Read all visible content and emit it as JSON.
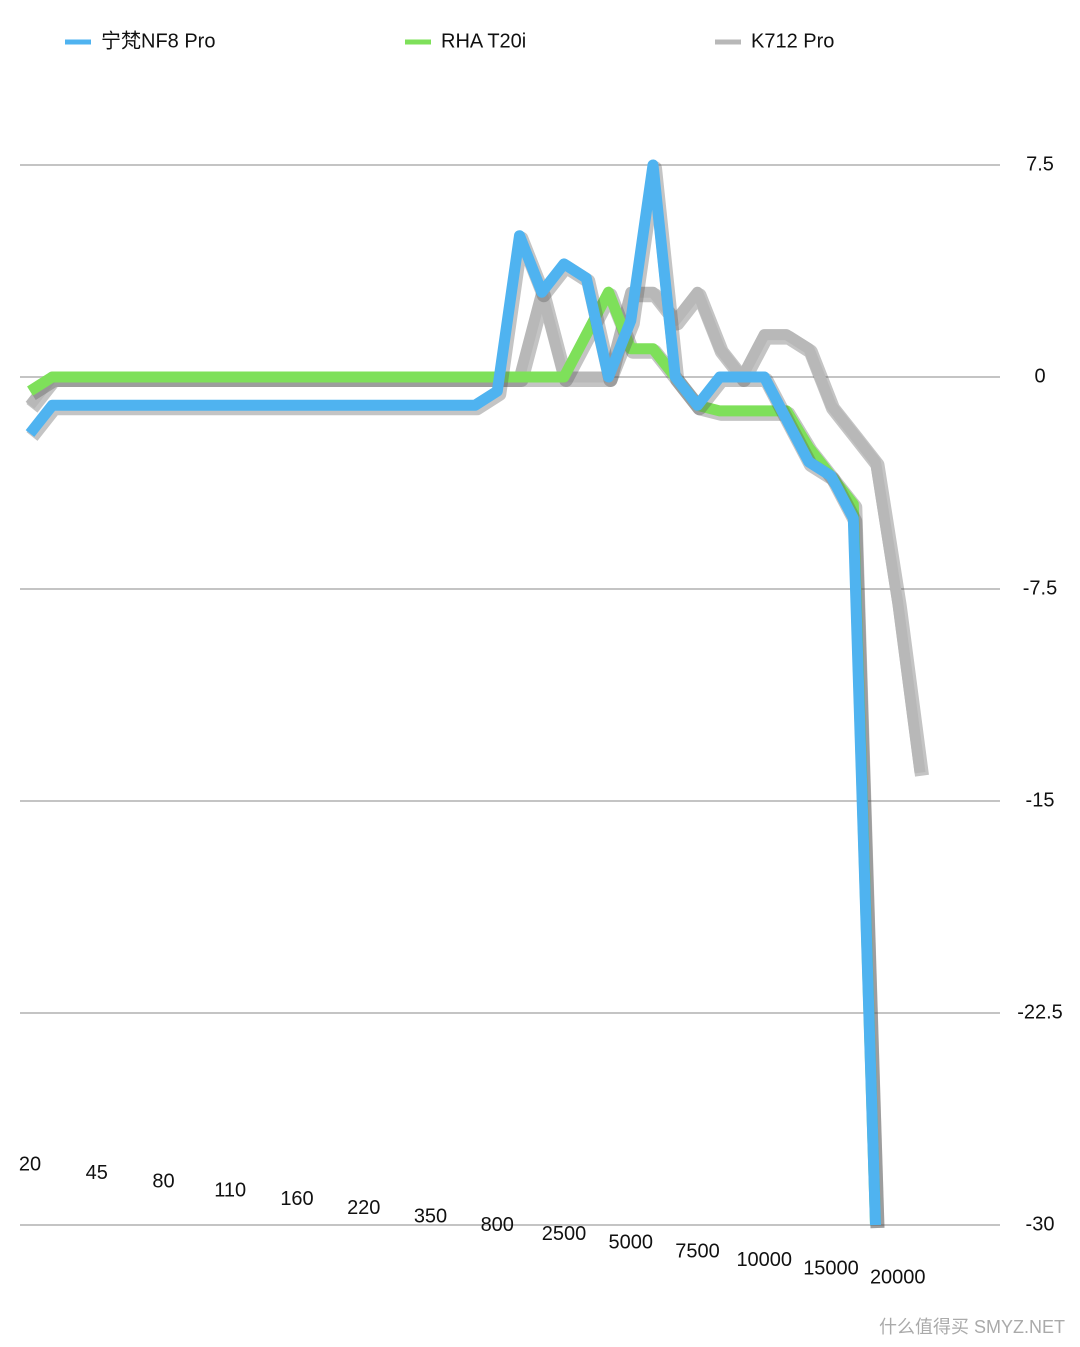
{
  "chart_data": {
    "type": "line",
    "categories": [
      "20",
      null,
      null,
      "45",
      null,
      null,
      "80",
      null,
      null,
      "110",
      null,
      null,
      "160",
      null,
      null,
      "220",
      null,
      null,
      "350",
      null,
      null,
      "800",
      null,
      null,
      "2500",
      null,
      null,
      "5000",
      null,
      null,
      "7500",
      null,
      null,
      "10000",
      null,
      null,
      "15000",
      null,
      null,
      "20000",
      null
    ],
    "series": [
      {
        "name": "宁梵NF8 Pro",
        "color": "#4fb3f0",
        "values": [
          -2,
          -1,
          -1,
          -1,
          -1,
          -1,
          -1,
          -1,
          -1,
          -1,
          -1,
          -1,
          -1,
          -1,
          -1,
          -1,
          -1,
          -1,
          -1,
          -1,
          -1,
          -0.5,
          5,
          3,
          4,
          3.5,
          0,
          2,
          7.5,
          0,
          -1,
          0,
          0,
          0,
          -1.5,
          -3,
          -3.5,
          -5,
          -30,
          null,
          null
        ]
      },
      {
        "name": "RHA T20i",
        "color": "#7ee05a",
        "values": [
          -0.5,
          0,
          0,
          0,
          0,
          0,
          0,
          0,
          0,
          0,
          0,
          0,
          0,
          0,
          0,
          0,
          0,
          0,
          0,
          0,
          0,
          0,
          0,
          0,
          0,
          1.5,
          3,
          1,
          1,
          0,
          -1,
          -1.2,
          -1.2,
          -1.2,
          -1.2,
          -2.5,
          -3.5,
          -4.5,
          -30,
          null,
          null
        ]
      },
      {
        "name": "K712 Pro",
        "color": "#b8b8b8",
        "values": [
          -1,
          0,
          0,
          0,
          0,
          0,
          0,
          0,
          0,
          0,
          0,
          0,
          0,
          0,
          0,
          0,
          0,
          0,
          0,
          0,
          0,
          0,
          0,
          3,
          0,
          0,
          0,
          3,
          3,
          2,
          3,
          1,
          0,
          1.5,
          1.5,
          1,
          -1,
          -2,
          -3,
          -8,
          -14
        ]
      }
    ],
    "ylim": [
      -30,
      7.5
    ],
    "yticks": [
      7.5,
      0,
      -7.5,
      -15,
      -22.5,
      -30
    ],
    "grid": true,
    "legend": "top"
  },
  "watermark": "什么值得买 SMYZ.NET"
}
